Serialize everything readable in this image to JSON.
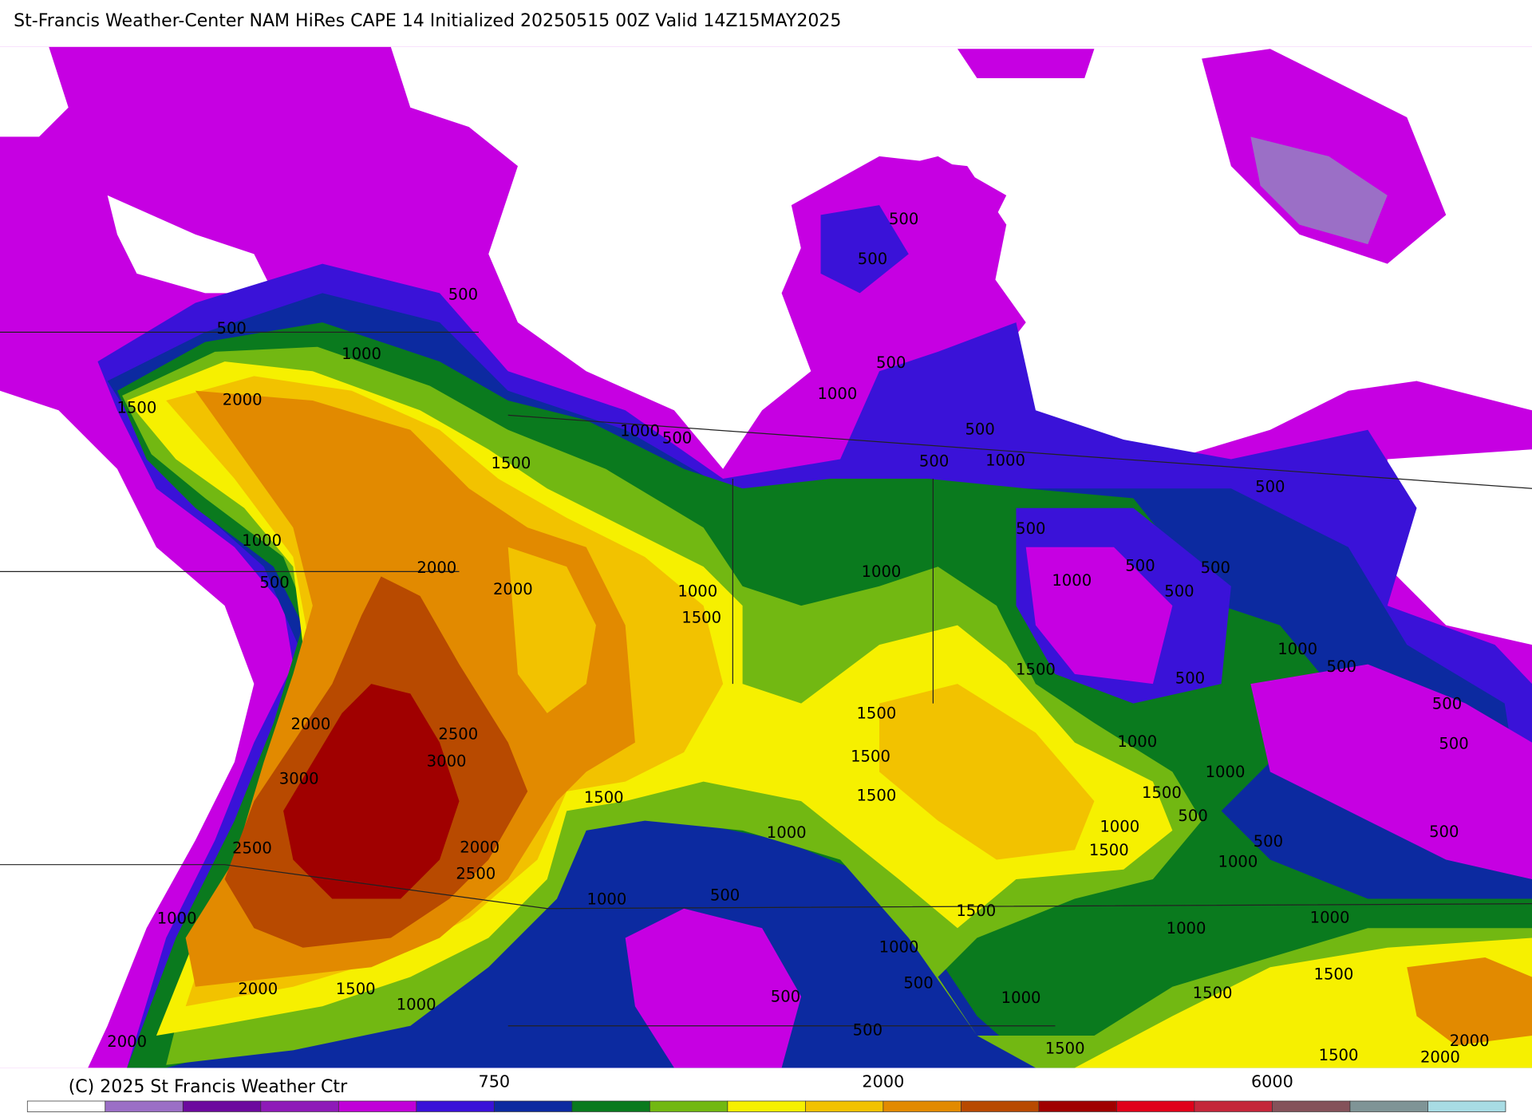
{
  "header": {
    "title": "St-Francis Weather-Center NAM HiRes CAPE  14 Initialized 20250515 00Z Valid 14Z15MAY2025"
  },
  "contour_labels": [
    500,
    500,
    500,
    500,
    1000,
    500,
    1500,
    2000,
    1000,
    1000,
    500,
    500,
    500,
    1000,
    1500,
    500,
    500,
    1000,
    2000,
    500,
    2000,
    1000,
    1000,
    500,
    500,
    500,
    1000,
    1500,
    1000,
    500,
    1500,
    500,
    500,
    1500,
    2000,
    2500,
    3000,
    1500,
    1000,
    500,
    3000,
    1000,
    1500,
    1500,
    1500,
    500,
    1000,
    1000,
    500,
    500,
    2000,
    2500,
    1500,
    1000,
    2500,
    500,
    1000,
    1000,
    1500,
    1000,
    1000,
    1000,
    1500,
    500,
    2000,
    1500,
    500,
    1000,
    1500,
    1000,
    500,
    2000,
    2000,
    1500,
    1500,
    2000
  ],
  "colorbar": {
    "colors": [
      "#ffffff",
      "#9b6fc6",
      "#6c0a9e",
      "#8e1ab8",
      "#c000d8",
      "#3a12d8",
      "#0c2aa0",
      "#0a7a1e",
      "#72b812",
      "#f6f000",
      "#f2c200",
      "#e28a00",
      "#b84a00",
      "#a00000",
      "#e0001a",
      "#c4263a",
      "#84525a",
      "#7f9496",
      "#a8dce4"
    ],
    "labels": [
      "750",
      "2000",
      "6000"
    ]
  },
  "footer": {
    "credit": "(C) 2025 St Francis Weather Ctr"
  }
}
